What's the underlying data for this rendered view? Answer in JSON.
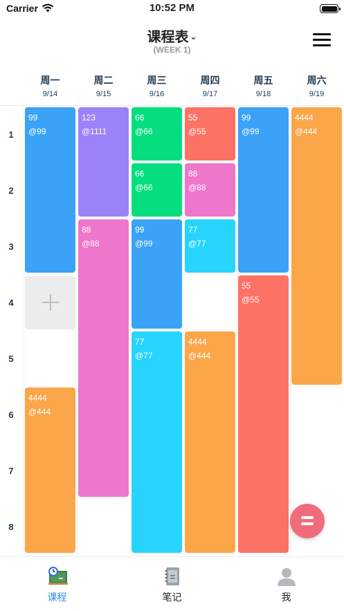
{
  "status": {
    "carrier": "Carrier",
    "time": "10:52 PM"
  },
  "nav": {
    "title": "课程表",
    "subtitle": "(WEEK 1)"
  },
  "days": [
    {
      "name": "周一",
      "date": "9/14"
    },
    {
      "name": "周二",
      "date": "9/15"
    },
    {
      "name": "周三",
      "date": "9/16"
    },
    {
      "name": "周四",
      "date": "9/17"
    },
    {
      "name": "周五",
      "date": "9/18"
    },
    {
      "name": "周六",
      "date": "9/19"
    }
  ],
  "periods": [
    "1",
    "2",
    "3",
    "4",
    "5",
    "6",
    "7",
    "8"
  ],
  "courses": [
    {
      "day": 0,
      "start": 1,
      "span": 3,
      "name": "99",
      "room": "@99",
      "color": "#3aa3f8"
    },
    {
      "day": 0,
      "start": 6,
      "span": 3,
      "name": "4444",
      "room": "@444",
      "color": "#fca64a"
    },
    {
      "day": 1,
      "start": 1,
      "span": 2,
      "name": "123",
      "room": "@1111",
      "color": "#9b82fb"
    },
    {
      "day": 1,
      "start": 3,
      "span": 5,
      "name": "88",
      "room": "@88",
      "color": "#ee76cb"
    },
    {
      "day": 2,
      "start": 1,
      "span": 1,
      "name": "66",
      "room": "@66",
      "color": "#05de7f"
    },
    {
      "day": 2,
      "start": 2,
      "span": 1,
      "name": "66",
      "room": "@66",
      "color": "#05de7f"
    },
    {
      "day": 2,
      "start": 3,
      "span": 2,
      "name": "99",
      "room": "@99",
      "color": "#3aa3f8"
    },
    {
      "day": 2,
      "start": 5,
      "span": 4,
      "name": "77",
      "room": "@77",
      "color": "#27d4fd"
    },
    {
      "day": 3,
      "start": 1,
      "span": 1,
      "name": "55",
      "room": "@55",
      "color": "#fd7265"
    },
    {
      "day": 3,
      "start": 2,
      "span": 1,
      "name": "88",
      "room": "@88",
      "color": "#ee76cb"
    },
    {
      "day": 3,
      "start": 3,
      "span": 1,
      "name": "77",
      "room": "@77",
      "color": "#27d4fd"
    },
    {
      "day": 3,
      "start": 5,
      "span": 4,
      "name": "4444",
      "room": "@444",
      "color": "#fca64a"
    },
    {
      "day": 4,
      "start": 1,
      "span": 3,
      "name": "99",
      "room": "@99",
      "color": "#3aa3f8"
    },
    {
      "day": 4,
      "start": 4,
      "span": 5,
      "name": "55",
      "room": "@55",
      "color": "#fd7265"
    },
    {
      "day": 5,
      "start": 1,
      "span": 5,
      "name": "4444",
      "room": "@444",
      "color": "#fca64a"
    }
  ],
  "tabs": [
    {
      "label": "课程",
      "icon": "schedule-board-icon",
      "active": true
    },
    {
      "label": "笔记",
      "icon": "notebook-icon",
      "active": false
    },
    {
      "label": "我",
      "icon": "person-icon",
      "active": false
    }
  ],
  "colors": {
    "accent": "#2f8ff0",
    "tab_inactive": "#222222",
    "fab": "#f06c7c"
  }
}
